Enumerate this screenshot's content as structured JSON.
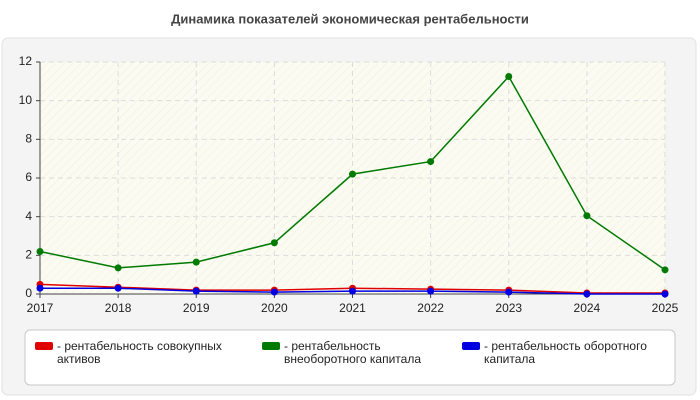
{
  "chart_data": {
    "type": "line",
    "title": "Динамика показателей экономическая рентабельности",
    "categories": [
      "2017",
      "2018",
      "2019",
      "2020",
      "2021",
      "2022",
      "2023",
      "2024",
      "2025"
    ],
    "series": [
      {
        "name": "- рентабельность совокупных активов",
        "color": "#e00000",
        "values": [
          0.5,
          0.35,
          0.2,
          0.2,
          0.3,
          0.25,
          0.2,
          0.05,
          0.05
        ]
      },
      {
        "name": "- рентабельность внеоборотного капитала",
        "color": "#007a00",
        "values": [
          2.2,
          1.35,
          1.65,
          2.65,
          6.2,
          6.85,
          11.25,
          4.05,
          1.25
        ]
      },
      {
        "name": "- рентабельность оборотного капитала",
        "color": "#0000e0",
        "values": [
          0.3,
          0.3,
          0.15,
          0.1,
          0.15,
          0.15,
          0.1,
          0.0,
          0.0
        ]
      }
    ],
    "ylim": [
      0,
      12
    ],
    "yticks": [
      0,
      2,
      4,
      6,
      8,
      10,
      12
    ],
    "grid": true,
    "legend": "bottom"
  }
}
